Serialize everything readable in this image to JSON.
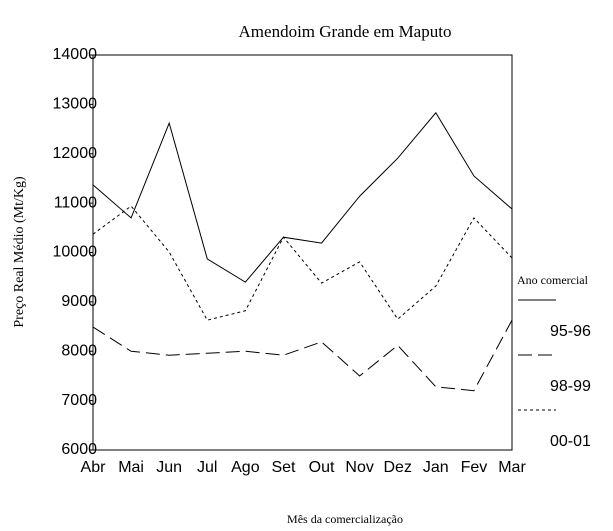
{
  "chart_data": {
    "type": "line",
    "title": "Amendoim Grande em Maputo",
    "y_label": "Preço Real Médio (Mt/Kg)",
    "x_label": "Mês da comercialização",
    "legend_title": "Ano comercial",
    "categories": [
      "Abr",
      "Mai",
      "Jun",
      "Jul",
      "Ago",
      "Set",
      "Out",
      "Nov",
      "Dez",
      "Jan",
      "Fev",
      "Mar"
    ],
    "series": [
      {
        "name": "95-96",
        "color": "#000000",
        "linestyle": "solid",
        "values": [
          11370,
          10700,
          12620,
          9870,
          9400,
          10310,
          10190,
          11140,
          11910,
          12830,
          11550,
          10880
        ]
      },
      {
        "name": "98-99",
        "color": "#000000",
        "linestyle": "dashed",
        "values": [
          8490,
          8000,
          7920,
          7960,
          8000,
          7920,
          8190,
          7500,
          8120,
          7280,
          7200,
          8630
        ]
      },
      {
        "name": "00-01",
        "color": "#000000",
        "linestyle": "dotted",
        "values": [
          10370,
          10940,
          10010,
          8630,
          8820,
          10310,
          9380,
          9810,
          8650,
          9320,
          10700,
          9890
        ]
      }
    ],
    "ylim": [
      6000,
      14000
    ],
    "yticks": [
      6000,
      7000,
      8000,
      9000,
      10000,
      11000,
      12000,
      13000,
      14000
    ],
    "grid": false
  }
}
